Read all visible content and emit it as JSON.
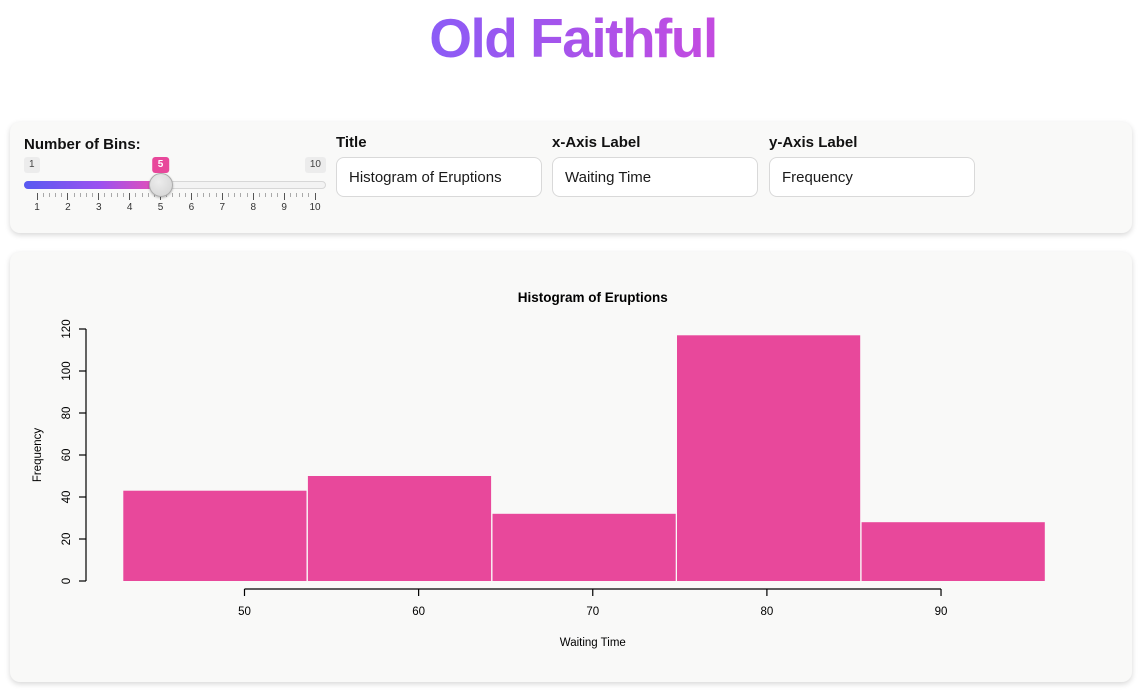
{
  "app": {
    "title": "Old Faithful"
  },
  "controls": {
    "bins_slider": {
      "label": "Number of Bins:",
      "min": 1,
      "max": 10,
      "value": 5,
      "min_label": "1",
      "max_label": "10",
      "value_label": "5",
      "tick_labels": [
        "1",
        "2",
        "3",
        "4",
        "5",
        "6",
        "7",
        "8",
        "9",
        "10"
      ]
    },
    "title_input": {
      "label": "Title",
      "value": "Histogram of Eruptions"
    },
    "xlabel_input": {
      "label": "x-Axis Label",
      "value": "Waiting Time"
    },
    "ylabel_input": {
      "label": "y-Axis Label",
      "value": "Frequency"
    }
  },
  "chart_data": {
    "type": "bar",
    "title": "Histogram of Eruptions",
    "xlabel": "Waiting Time",
    "ylabel": "Frequency",
    "bin_edges": [
      43,
      53.6,
      64.2,
      74.8,
      85.4,
      96
    ],
    "values": [
      43,
      50,
      32,
      117,
      28
    ],
    "x_ticks": [
      50,
      60,
      70,
      80,
      90
    ],
    "y_ticks": [
      0,
      20,
      40,
      60,
      80,
      100,
      120
    ],
    "ylim": [
      0,
      120
    ],
    "bar_color": "#E8489B",
    "grid": "off",
    "legend": "none"
  },
  "colors": {
    "accent_pink": "#E8489B",
    "title_gradient_start": "#8B5CF6",
    "title_gradient_end": "#C44BE0",
    "slider_gradient_start": "#585AF1",
    "slider_gradient_end": "#EA53B2",
    "panel_background": "#f9f9f8"
  }
}
